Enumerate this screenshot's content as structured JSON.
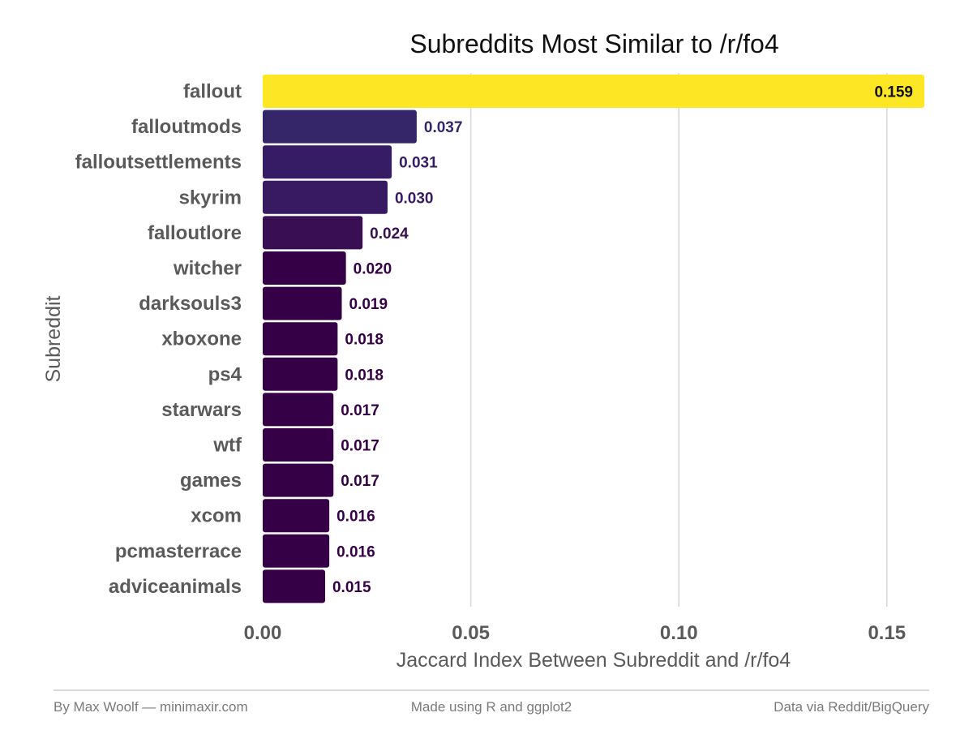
{
  "chart_data": {
    "type": "bar",
    "orientation": "horizontal",
    "title": "Subreddits Most Similar to /r/fo4",
    "xlabel": "Jaccard Index Between Subreddit and /r/fo4",
    "ylabel": "Subreddit",
    "categories": [
      "fallout",
      "falloutmods",
      "falloutsettlements",
      "skyrim",
      "falloutlore",
      "witcher",
      "darksouls3",
      "xboxone",
      "ps4",
      "starwars",
      "wtf",
      "games",
      "xcom",
      "pcmasterrace",
      "adviceanimals"
    ],
    "values": [
      0.159,
      0.037,
      0.031,
      0.03,
      0.024,
      0.02,
      0.019,
      0.018,
      0.018,
      0.017,
      0.017,
      0.017,
      0.016,
      0.016,
      0.015
    ],
    "value_labels": [
      "0.159",
      "0.037",
      "0.031",
      "0.030",
      "0.024",
      "0.020",
      "0.019",
      "0.018",
      "0.018",
      "0.017",
      "0.017",
      "0.017",
      "0.016",
      "0.016",
      "0.015"
    ],
    "bar_colors": [
      "#fde725",
      "#35266a",
      "#361c64",
      "#371a62",
      "#3a0e52",
      "#360046",
      "#360046",
      "#360046",
      "#360046",
      "#360046",
      "#360046",
      "#360046",
      "#360046",
      "#360046",
      "#360046"
    ],
    "label_colors": [
      "#111111",
      "#35266a",
      "#361c64",
      "#371a62",
      "#3a0e52",
      "#360046",
      "#360046",
      "#360046",
      "#360046",
      "#360046",
      "#360046",
      "#360046",
      "#360046",
      "#360046",
      "#360046"
    ],
    "xticks": [
      0,
      0.05,
      0.1,
      0.15
    ],
    "xtick_labels": [
      "0.00",
      "0.05",
      "0.10",
      "0.15"
    ],
    "xlim": [
      0,
      0.159
    ],
    "grid": "vertical major gridlines",
    "legend": "none"
  },
  "footer": {
    "left": "By Max Woolf — minimaxir.com",
    "center": "Made using R and ggplot2",
    "right": "Data via Reddit/BigQuery"
  }
}
